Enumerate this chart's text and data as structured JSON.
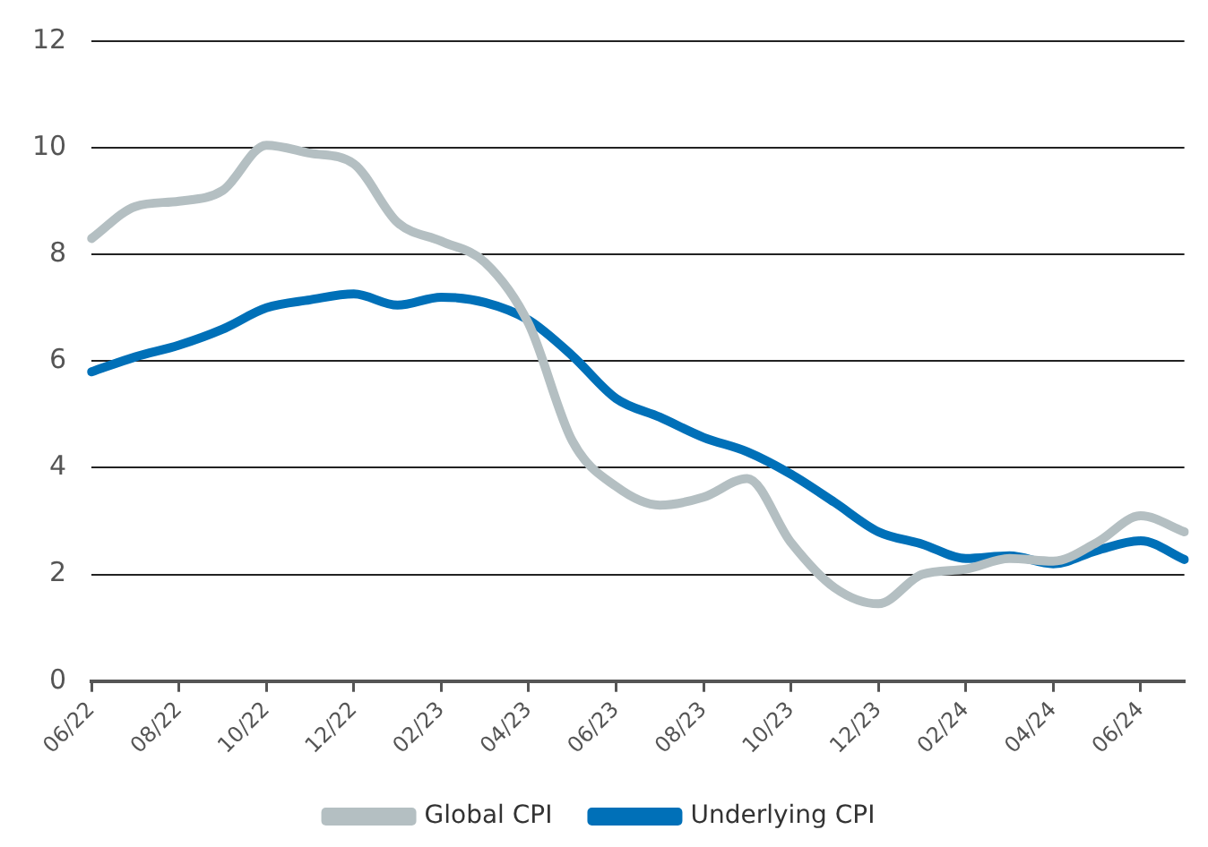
{
  "chart_data": {
    "type": "line",
    "categories": [
      "06/22",
      null,
      "08/22",
      null,
      "10/22",
      null,
      "12/22",
      null,
      "02/23",
      null,
      "04/23",
      null,
      "06/23",
      null,
      "08/23",
      null,
      "10/23",
      null,
      "12/23",
      null,
      "02/24",
      null,
      "04/24",
      null,
      "06/24",
      null
    ],
    "series": [
      {
        "name": "Global CPI",
        "color": "#b4bfc2",
        "values": [
          8.3,
          8.9,
          9.0,
          9.2,
          10.05,
          9.9,
          9.7,
          8.6,
          8.25,
          7.85,
          6.7,
          4.5,
          3.65,
          3.3,
          3.45,
          3.8,
          2.6,
          1.75,
          1.45,
          2.0,
          2.1,
          2.3,
          2.25,
          2.6,
          3.1,
          2.8
        ]
      },
      {
        "name": "Underlying CPI",
        "color": "#0070b8",
        "values": [
          5.8,
          6.08,
          6.3,
          6.6,
          7.0,
          7.15,
          7.26,
          7.05,
          7.2,
          7.1,
          6.77,
          6.1,
          5.3,
          4.95,
          4.57,
          4.3,
          3.88,
          3.35,
          2.8,
          2.57,
          2.3,
          2.35,
          2.2,
          2.45,
          2.63,
          2.28
        ]
      }
    ],
    "ylim": [
      0,
      12
    ],
    "yticks": [
      0,
      2,
      4,
      6,
      8,
      10,
      12
    ],
    "grid": "y",
    "legend": "bottom",
    "marker": "none",
    "line_style": "solid"
  }
}
